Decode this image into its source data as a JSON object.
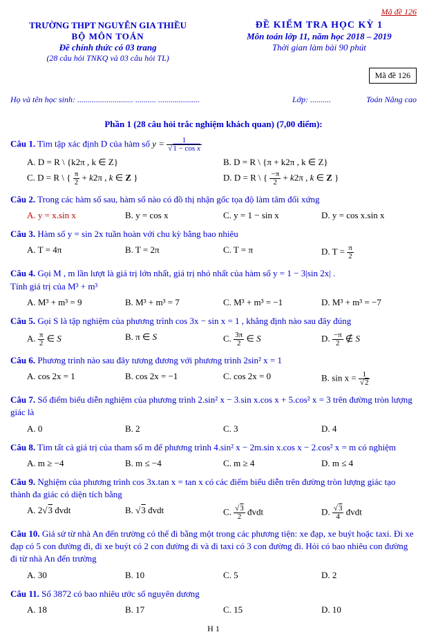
{
  "header": {
    "top_code": "Mã đề 126",
    "school": "TRƯỜNG THPT NGUYỄN GIA THIỀU",
    "dept": "BỘ MÔN TOÁN",
    "official": "Đề chính thức có 03 trang",
    "subline": "(28 câu hỏi TNKQ và 03 câu hỏi TL)",
    "title": "ĐỀ KIỂM TRA HỌC KỲ 1",
    "subject": "Môn toán lớp 11, năm học 2018 – 2019",
    "time": "Thời gian làm bài 90 phút",
    "code_box": "Mã đề 126"
  },
  "student": {
    "name_label": "Họ và tên học sinh:",
    "dots": "...........................  ..........  ....................",
    "class_label": "Lớp:",
    "class_dots": "..........",
    "track": "Toán Nâng cao"
  },
  "section": "Phần 1 (28 câu hỏi trắc nghiệm khách quan)  (7,00 điểm):",
  "q1": {
    "label": "Câu 1.",
    "text": "Tìm tập xác định D của hàm số",
    "a": "A.  D = R \\ {k2π , k ∈ Z}",
    "b": "B.  D = R \\ {π + k2π , k ∈ Z}",
    "c_prefix": "C.  D = R \\ ",
    "d_prefix": "D.  D = R \\ "
  },
  "q2": {
    "label": "Câu 2.",
    "text": "Trong các hàm số sau, hàm số nào có đồ thị nhận gốc tọa độ làm tâm đối xứng",
    "a": "A.  y = x.sin x",
    "b": "B.  y = cos x",
    "c": "C.  y = 1 − sin x",
    "d": "D.  y = cos x.sin x"
  },
  "q3": {
    "label": "Câu 3.",
    "text": "Hàm số  y = sin 2x  tuần hoàn với chu kỳ bằng bao nhiêu",
    "a": "A.  T = 4π",
    "b": "B.  T = 2π",
    "c": "C.  T = π",
    "d_prefix": "D.  T = "
  },
  "q4": {
    "label": "Câu 4.",
    "text1": "Gọi M , m lần lượt là giá trị lớn nhất, giá trị nhỏ nhất của hàm số  y = 1 − 3|sin 2x| .",
    "text2": "Tính giá trị của  M³ + m³",
    "a": "A.  M³ + m³ = 9",
    "b": "B.  M³ + m³ = 7",
    "c": "C.  M³ + m³ = −1",
    "d": "D.  M³ + m³ = −7"
  },
  "q5": {
    "label": "Câu 5.",
    "text": "Gọi S là tập nghiệm của phương trình  cos 3x − sin x = 1 , khẳng định nào sau đây đúng"
  },
  "q6": {
    "label": "Câu 6.",
    "text": "Phương trình nào sau đây tương đương với phương trình  2sin² x = 1",
    "a": "A.  cos 2x = 1",
    "b": "B.  cos 2x = −1",
    "c": "C.  cos 2x = 0",
    "d_prefix": "B.  sin x = "
  },
  "q7": {
    "label": "Câu 7.",
    "text": "Số điểm biểu diễn nghiệm của phương trình  2.sin² x − 3.sin x.cos x + 5.cos² x = 3  trên đường tròn lượng giác là",
    "a": "A.  0",
    "b": "B.  2",
    "c": "C.  3",
    "d": "D.  4"
  },
  "q8": {
    "label": "Câu 8.",
    "text": "Tìm tất cả giá trị của tham số m để phương trình  4.sin² x − 2m.sin x.cos x − 2.cos² x = m có nghiệm",
    "a": "A.  m ≥ −4",
    "b": "B.  m ≤ −4",
    "c": "C.  m ≥ 4",
    "d": "D.  m ≤ 4"
  },
  "q9": {
    "label": "Câu 9.",
    "text": "Nghiệm của phương trình  cos 3x.tan x = tan x  có các điểm biểu diễn trên đường tròn lượng giác tạo thành đa giác có diện tích bằng"
  },
  "q10": {
    "label": "Câu 10.",
    "text": "Giả sử từ nhà An đến trường có thể đi bằng một trong các phương tiện: xe đạp, xe buýt hoặc taxi. Đi xe đạp có 5 con đường đi, đi xe buýt có 2 con đường đi và đi taxi có 3 con đường đi. Hỏi có bao nhiêu con đường đi từ nhà An đến trường",
    "a": "A.  30",
    "b": "B.  10",
    "c": "C.  5",
    "d": "D.  2"
  },
  "q11": {
    "label": "Câu 11.",
    "text": "Số  3872  có bao nhiêu ước số nguyên dương",
    "a": "A.  18",
    "b": "B.  17",
    "c": "C.  15",
    "d": "D.  10"
  },
  "page": "H 1"
}
